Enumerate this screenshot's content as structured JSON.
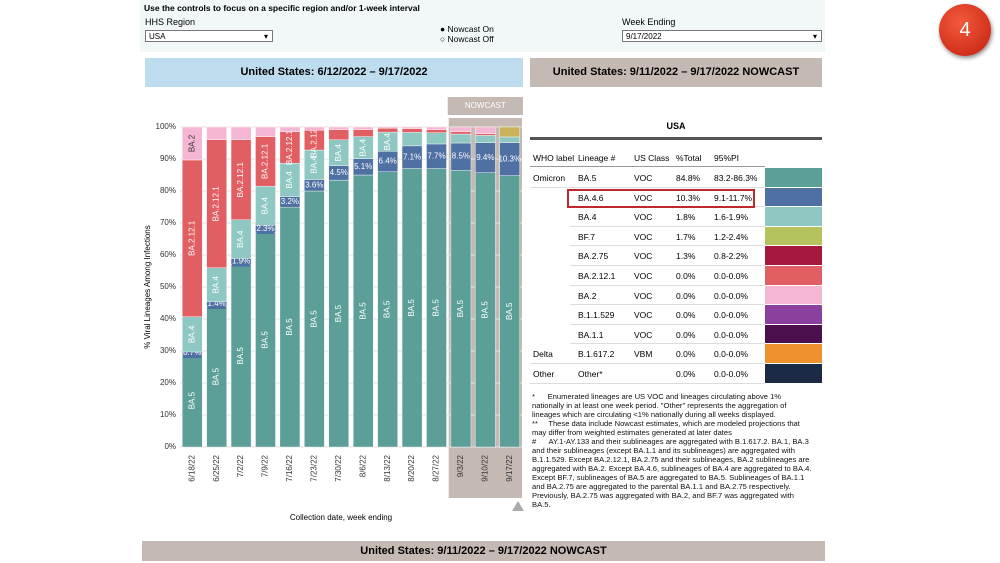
{
  "controls": {
    "instruction": "Use the controls to focus on a specific region and/or 1-week interval",
    "region_label": "HHS Region",
    "region_value": "USA",
    "nowcast_on": "Nowcast On",
    "nowcast_off": "Nowcast Off",
    "week_label": "Week Ending",
    "week_value": "9/17/2022"
  },
  "badge": "4",
  "left_header": "United States: 6/12/2022 – 9/17/2022",
  "right_header": "United States: 9/11/2022 – 9/17/2022 NOWCAST",
  "bottom_header": "United States: 9/11/2022 – 9/17/2022 NOWCAST",
  "chart_data": {
    "type": "stacked_bar",
    "nowcast_label": "NOWCAST",
    "y_label": "% Viral Lineages Among Infections",
    "x_label": "Collection date, week ending",
    "categories": [
      "6/18/22",
      "6/25/22",
      "7/2/22",
      "7/9/22",
      "7/16/22",
      "7/23/22",
      "7/30/22",
      "8/6/22",
      "8/13/22",
      "8/20/22",
      "8/27/22",
      "9/3/22",
      "9/10/22",
      "9/17/22"
    ],
    "series": [
      {
        "name": "BA.5",
        "color": "#5c9f98",
        "values": [
          29,
          44,
          57,
          67,
          75,
          80,
          83.4,
          85,
          86,
          87,
          87,
          86.5,
          85.7,
          84.8
        ]
      },
      {
        "name": "BA.4.6",
        "color": "#4f70a3",
        "values": [
          0.7,
          1.4,
          1.9,
          2.3,
          3.2,
          3.6,
          4.5,
          5.1,
          6.4,
          7.1,
          7.7,
          8.5,
          9.4,
          10.3
        ],
        "value_labels": [
          "0.7%",
          "1.4%",
          "1.9%",
          "2.3%",
          "3.2%",
          "3.6%",
          "4.5%",
          "5.1%",
          "6.4%",
          "7.1%",
          "7.7%",
          "8.5%",
          "9.4%",
          "10.3%"
        ]
      },
      {
        "name": "BA.4",
        "color": "#8fc8c2",
        "values": [
          11,
          10.6,
          12.1,
          12.2,
          10.5,
          9.2,
          8.1,
          6.9,
          6,
          4.2,
          3.5,
          2.8,
          2.3,
          1.8
        ]
      },
      {
        "name": "BA.2.12.1",
        "color": "#e15e63",
        "values": [
          49,
          40,
          25,
          15.5,
          9.8,
          6.2,
          3.2,
          2.2,
          1.2,
          1.2,
          1,
          0.7,
          0.5,
          0
        ]
      },
      {
        "name": "BA.2",
        "color": "#f5b6d3",
        "values": [
          10.3,
          4,
          4,
          3,
          1.5,
          1,
          0.8,
          0.8,
          0.4,
          0.5,
          0.8,
          1.5,
          2.1,
          0
        ]
      },
      {
        "name": "Other",
        "color": "#c9b25a",
        "values": [
          0,
          0,
          0,
          0,
          0,
          0,
          0,
          0,
          0,
          0,
          0,
          0,
          0,
          3.1
        ]
      }
    ],
    "ylim": [
      0,
      100
    ],
    "yticks": [
      {
        "value": 0,
        "label": "0%"
      },
      {
        "value": 10,
        "label": "10%"
      },
      {
        "value": 20,
        "label": "20%"
      },
      {
        "value": 30,
        "label": "30%"
      },
      {
        "value": 40,
        "label": "40%"
      },
      {
        "value": 50,
        "label": "50%"
      },
      {
        "value": 60,
        "label": "60%"
      },
      {
        "value": 70,
        "label": "70%"
      },
      {
        "value": 80,
        "label": "80%"
      },
      {
        "value": 90,
        "label": "90%"
      },
      {
        "value": 100,
        "label": "100%"
      }
    ],
    "grid": true
  },
  "table": {
    "title": "USA",
    "columns": [
      "WHO label",
      "Lineage #",
      "US Class",
      "%Total",
      "95%PI"
    ],
    "rows": [
      {
        "who": "Omicron",
        "lineage": "BA.5",
        "class": "VOC",
        "total": "84.8%",
        "pi": "83.2-86.3%",
        "color": "#5c9f98"
      },
      {
        "lineage": "BA.4.6",
        "class": "VOC",
        "total": "10.3%",
        "pi": "9.1-11.7%",
        "color": "#4f70a3",
        "highlight": true
      },
      {
        "lineage": "BA.4",
        "class": "VOC",
        "total": "1.8%",
        "pi": "1.6-1.9%",
        "color": "#8fc8c2"
      },
      {
        "lineage": "BF.7",
        "class": "VOC",
        "total": "1.7%",
        "pi": "1.2-2.4%",
        "color": "#b6c25d"
      },
      {
        "lineage": "BA.2.75",
        "class": "VOC",
        "total": "1.3%",
        "pi": "0.8-2.2%",
        "color": "#a3183b"
      },
      {
        "lineage": "BA.2.12.1",
        "class": "VOC",
        "total": "0.0%",
        "pi": "0.0-0.0%",
        "color": "#e15e63"
      },
      {
        "lineage": "BA.2",
        "class": "VOC",
        "total": "0.0%",
        "pi": "0.0-0.0%",
        "color": "#f5b6d3"
      },
      {
        "lineage": "B.1.1.529",
        "class": "VOC",
        "total": "0.0%",
        "pi": "0.0-0.0%",
        "color": "#8b3f9f"
      },
      {
        "lineage": "BA.1.1",
        "class": "VOC",
        "total": "0.0%",
        "pi": "0.0-0.0%",
        "color": "#4c0f4e"
      },
      {
        "who": "Delta",
        "lineage": "B.1.617.2",
        "class": "VBM",
        "total": "0.0%",
        "pi": "0.0-0.0%",
        "color": "#f0912f"
      },
      {
        "who": "Other",
        "lineage": "Other*",
        "total": "0.0%",
        "pi": "0.0-0.0%",
        "color": "#1b2a45"
      }
    ]
  },
  "footnotes": [
    "*      Enumerated lineages are US VOC and lineages circulating above 1% nationally in at least one week period. \"Other\" represents the aggregation of lineages which are circulating <1% nationally during all weeks displayed.",
    "**     These data include Nowcast estimates, which are modeled projections that may differ from weighted estimates generated at later dates",
    "#      AY.1-AY.133 and their sublineages are aggregated with B.1.617.2. BA.1, BA.3 and their sublineages (except BA.1.1 and its sublineages) are aggregated with B.1.1.529. Except BA.2.12.1, BA.2.75 and their sublineages, BA.2 sublineages are aggregated with BA.2. Except BA.4.6, sublineages of BA.4 are aggregated to BA.4. Except BF.7, sublineages of BA.5 are aggregated to BA.5. Sublineages of BA.1.1 and BA.2.75 are aggregated to the parental BA.1.1 and BA.2.75 respectively. Previously, BA.2.75 was aggregated with BA.2, and BF.7 was aggregated with BA.5."
  ]
}
